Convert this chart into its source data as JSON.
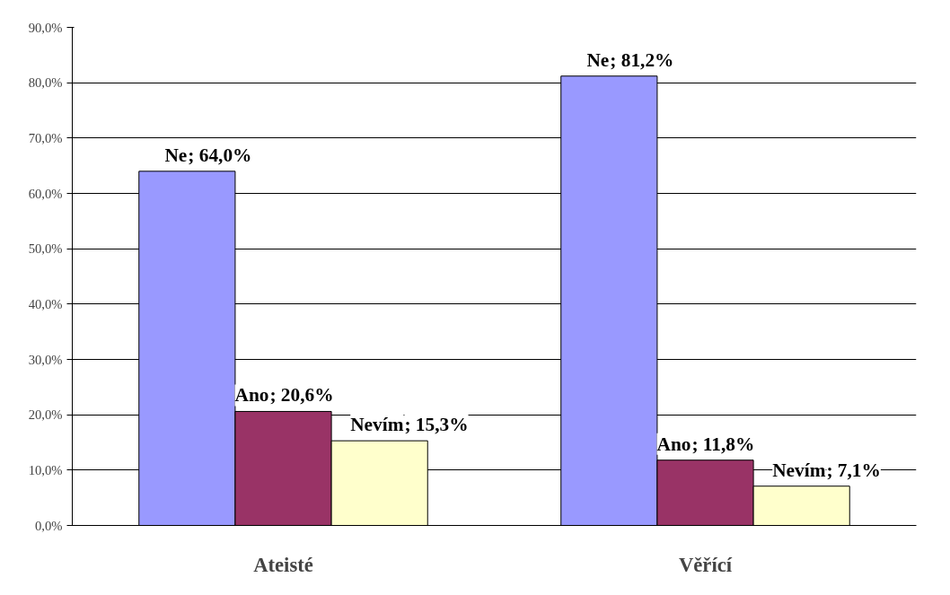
{
  "chart_data": {
    "type": "bar",
    "categories": [
      "Ateisté",
      "Věřící"
    ],
    "series": [
      {
        "name": "Ne",
        "color": "#9999ff",
        "values": [
          64.0,
          81.2
        ],
        "value_labels": [
          "; 64,0%",
          "; 81,2%"
        ]
      },
      {
        "name": "Ano",
        "color": "#993366",
        "values": [
          20.6,
          11.8
        ],
        "value_labels": [
          "; 20,6%",
          "; 11,8%"
        ]
      },
      {
        "name": "Nevím",
        "color": "#ffffcc",
        "values": [
          15.3,
          7.1
        ],
        "value_labels": [
          "; 15,3%",
          "; 7,1%"
        ]
      }
    ],
    "ylim": [
      0,
      90
    ],
    "yticks": [
      {
        "value": 0,
        "label": "0,0%"
      },
      {
        "value": 10,
        "label": "10,0%"
      },
      {
        "value": 20,
        "label": "20,0%"
      },
      {
        "value": 30,
        "label": "30,0%"
      },
      {
        "value": 40,
        "label": "40,0%"
      },
      {
        "value": 50,
        "label": "50,0%"
      },
      {
        "value": 60,
        "label": "60,0%"
      },
      {
        "value": 70,
        "label": "70,0%"
      },
      {
        "value": 80,
        "label": "80,0%"
      },
      {
        "value": 90,
        "label": "90,0%"
      }
    ],
    "grid": "y"
  }
}
